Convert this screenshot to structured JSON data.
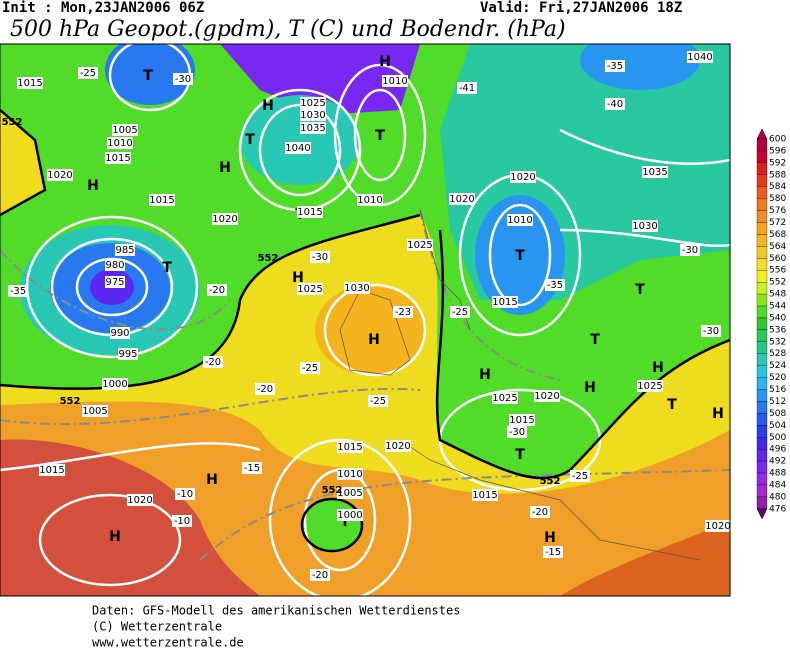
{
  "header": {
    "init": "Init : Mon,23JAN2006 06Z",
    "valid": "Valid: Fri,27JAN2006 18Z",
    "title": "500 hPa Geopot.(gpdm), T (C) und Bodendr. (hPa)"
  },
  "colorbar": {
    "labels": [
      600,
      596,
      592,
      588,
      584,
      580,
      576,
      572,
      568,
      564,
      560,
      556,
      552,
      548,
      544,
      540,
      536,
      532,
      528,
      524,
      520,
      516,
      512,
      508,
      504,
      500,
      496,
      492,
      488,
      484,
      480,
      476
    ],
    "colors": [
      "#b4004b",
      "#c80032",
      "#dc1e1e",
      "#e63c1e",
      "#f05a1e",
      "#f0781e",
      "#f08c1e",
      "#f5a01e",
      "#f5b41e",
      "#f5c81e",
      "#f5dc1e",
      "#f0f01e",
      "#c8f01e",
      "#8ce61e",
      "#50dc28",
      "#32c832",
      "#28c85a",
      "#28c88c",
      "#28c8b4",
      "#28c8dc",
      "#28b4f0",
      "#2896f0",
      "#2878f0",
      "#285af0",
      "#283cf0",
      "#3c28f0",
      "#5a28f0",
      "#7828f0",
      "#9628e6",
      "#aa28d2",
      "#8c1eaa",
      "#5a0a78"
    ]
  },
  "map": {
    "labels": [
      "H",
      "H",
      "H",
      "H",
      "T",
      "T",
      "T",
      "T",
      "T",
      "T",
      "H",
      "H",
      "H",
      "H",
      "T",
      "T",
      "T",
      "H",
      "T",
      "H",
      "H",
      "H",
      "T",
      "H",
      "1015",
      "1005",
      "1010",
      "1015",
      "1020",
      "1015",
      "975",
      "985",
      "980",
      "990",
      "995",
      "1000",
      "1005",
      "1015",
      "1020",
      "1025",
      "1030",
      "1025",
      "1020",
      "1010",
      "1015",
      "1025",
      "1020",
      "1015",
      "1015",
      "1020",
      "1010",
      "1005",
      "1000",
      "1015",
      "1025",
      "1030",
      "1035",
      "1040",
      "1010",
      "1025",
      "1030",
      "1035",
      "1040",
      "1020",
      "1015",
      "1010",
      "1020",
      "1020",
      "-25",
      "-30",
      "-41",
      "-40",
      "-35",
      "-35",
      "-30",
      "-35",
      "-30",
      "-25",
      "-25",
      "-20",
      "-15",
      "-10",
      "-10",
      "-20",
      "-15",
      "-20",
      "-30",
      "-25",
      "-23",
      "-25",
      "-20",
      "-20",
      "-30",
      "552",
      "552",
      "552",
      "552",
      "552"
    ]
  },
  "footer": {
    "lines": [
      "Daten: GFS-Modell des amerikanischen Wetterdienstes",
      "(C) Wetterzentrale",
      "www.wetterzentrale.de"
    ]
  }
}
